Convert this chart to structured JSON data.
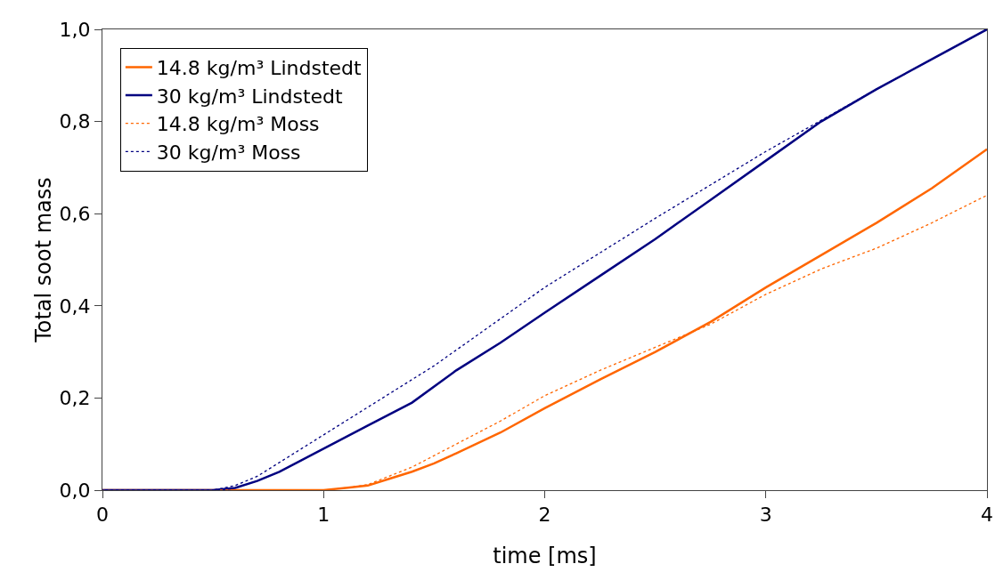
{
  "chart_data": {
    "type": "line",
    "xlabel": "time [ms]",
    "ylabel": "Total soot mass",
    "xlim": [
      0,
      4
    ],
    "xticks": [
      0,
      1,
      2,
      3,
      4
    ],
    "ylim": [
      0,
      1
    ],
    "yticks": [
      {
        "value": 0,
        "label": "0,0"
      },
      {
        "value": 0.2,
        "label": "0,2"
      },
      {
        "value": 0.4,
        "label": "0,4"
      },
      {
        "value": 0.6,
        "label": "0,6"
      },
      {
        "value": 0.8,
        "label": "0,8"
      },
      {
        "value": 1,
        "label": "1,0"
      }
    ],
    "grid": false,
    "legend": "top left",
    "marker": "none",
    "series": [
      {
        "name": "14.8 kg/m³ Lindstedt",
        "color": "#ff6600",
        "line_style": "solid",
        "x": [
          0,
          0.5,
          1.0,
          1.1,
          1.2,
          1.3,
          1.4,
          1.5,
          1.6,
          1.8,
          2.0,
          2.25,
          2.5,
          2.75,
          3.0,
          3.25,
          3.5,
          3.75,
          4.0
        ],
        "values": [
          0,
          0,
          0,
          0.005,
          0.01,
          0.025,
          0.04,
          0.058,
          0.08,
          0.125,
          0.178,
          0.24,
          0.3,
          0.365,
          0.44,
          0.51,
          0.58,
          0.655,
          0.74
        ]
      },
      {
        "name": "30 kg/m³ Lindstedt",
        "color": "#000080",
        "line_style": "solid",
        "x": [
          0,
          0.5,
          0.6,
          0.7,
          0.8,
          0.9,
          1.0,
          1.2,
          1.4,
          1.6,
          1.8,
          2.0,
          2.25,
          2.5,
          2.75,
          3.0,
          3.25,
          3.5,
          3.75,
          4.0
        ],
        "values": [
          0,
          0,
          0.005,
          0.02,
          0.04,
          0.065,
          0.09,
          0.14,
          0.19,
          0.26,
          0.32,
          0.385,
          0.465,
          0.545,
          0.63,
          0.715,
          0.8,
          0.87,
          0.935,
          1.0
        ]
      },
      {
        "name": "14.8 kg/m³ Moss",
        "color": "#ff6600",
        "line_style": "dotted",
        "x": [
          0,
          1.0,
          1.1,
          1.2,
          1.4,
          1.6,
          1.8,
          2.0,
          2.25,
          2.5,
          2.75,
          3.0,
          3.25,
          3.5,
          3.75,
          4.0
        ],
        "values": [
          0,
          0,
          0.005,
          0.012,
          0.05,
          0.1,
          0.15,
          0.205,
          0.26,
          0.31,
          0.36,
          0.425,
          0.48,
          0.525,
          0.58,
          0.64
        ]
      },
      {
        "name": "30 kg/m³ Moss",
        "color": "#000080",
        "line_style": "dotted",
        "x": [
          0,
          0.5,
          0.6,
          0.7,
          0.8,
          0.9,
          1.0,
          1.2,
          1.5,
          2.0,
          2.5,
          3.0,
          3.5,
          4.0
        ],
        "values": [
          0,
          0,
          0.01,
          0.03,
          0.06,
          0.09,
          0.12,
          0.18,
          0.27,
          0.44,
          0.59,
          0.735,
          0.87,
          1.0
        ]
      }
    ]
  }
}
